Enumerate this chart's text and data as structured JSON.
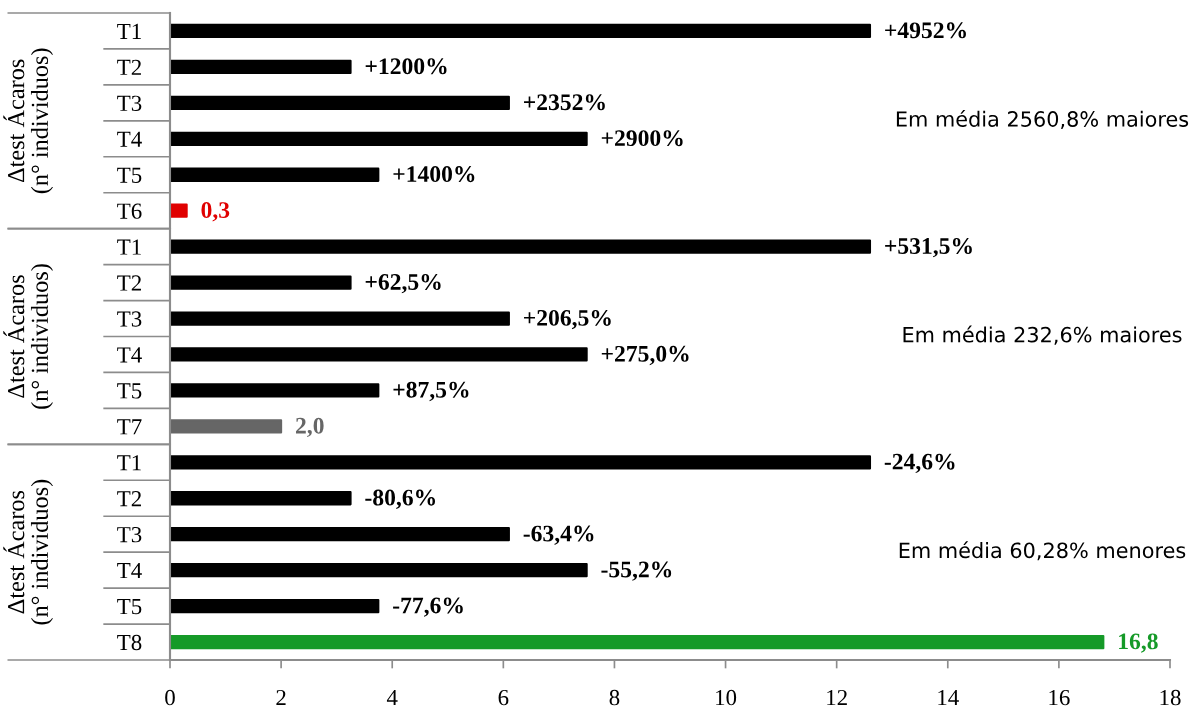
{
  "chart_data": [
    {
      "type": "bar",
      "orientation": "horizontal",
      "categories": [
        "T1",
        "T2",
        "T3",
        "T4",
        "T5",
        "T6"
      ],
      "values": [
        12.6,
        3.25,
        6.1,
        7.5,
        3.75,
        0.3
      ],
      "colors": [
        "#000000",
        "#000000",
        "#000000",
        "#000000",
        "#000000",
        "#e00000"
      ],
      "value_labels": [
        null,
        null,
        null,
        null,
        null,
        "0,3"
      ],
      "ylabel": "Δtest Ácaros\n(n° individuos)",
      "annotations": [
        {
          "text": "+4952%",
          "x": 12.6,
          "y": "T1"
        },
        {
          "text": "+1200%",
          "x": 3.25,
          "y": "T2"
        },
        {
          "text": "+2352%",
          "x": 6.1,
          "y": "T3"
        },
        {
          "text": "+2900%",
          "x": 7.5,
          "y": "T4"
        },
        {
          "text": "+1400%",
          "x": 3.75,
          "y": "T5"
        },
        "Em média 2560,8% maiores"
      ],
      "xlim": [
        0,
        18
      ],
      "xticks": [
        0,
        2,
        4,
        6,
        8,
        10,
        12,
        14,
        16,
        18
      ],
      "tick_labels": "y"
    },
    {
      "type": "bar",
      "orientation": "horizontal",
      "categories": [
        "T1",
        "T2",
        "T3",
        "T4",
        "T5",
        "T7"
      ],
      "values": [
        12.6,
        3.25,
        6.1,
        7.5,
        3.75,
        2.0
      ],
      "colors": [
        "#000000",
        "#000000",
        "#000000",
        "#000000",
        "#000000",
        "#666666"
      ],
      "value_labels": [
        null,
        null,
        null,
        null,
        null,
        "2,0"
      ],
      "ylabel": "Δtest Ácaros\n(n° individuos)",
      "annotations": [
        {
          "text": "+531,5%",
          "x": 12.6,
          "y": "T1"
        },
        {
          "text": "+62,5%",
          "x": 3.25,
          "y": "T2"
        },
        {
          "text": "+206,5%",
          "x": 6.1,
          "y": "T3"
        },
        {
          "text": "+275,0%",
          "x": 7.5,
          "y": "T4"
        },
        {
          "text": "+87,5%",
          "x": 3.75,
          "y": "T5"
        },
        "Em média 232,6% maiores"
      ],
      "xlim": [
        0,
        18
      ],
      "xticks": [
        0,
        2,
        4,
        6,
        8,
        10,
        12,
        14,
        16,
        18
      ],
      "tick_labels": "y"
    },
    {
      "type": "bar",
      "orientation": "horizontal",
      "categories": [
        "T1",
        "T2",
        "T3",
        "T4",
        "T5",
        "T8"
      ],
      "values": [
        12.6,
        3.25,
        6.1,
        7.5,
        3.75,
        16.8
      ],
      "colors": [
        "#000000",
        "#000000",
        "#000000",
        "#000000",
        "#000000",
        "#159a28"
      ],
      "value_labels": [
        null,
        null,
        null,
        null,
        null,
        "16,8"
      ],
      "ylabel": "Δtest Ácaros\n(n° individuos)",
      "annotations": [
        {
          "text": "-24,6%",
          "x": 12.6,
          "y": "T1"
        },
        {
          "text": "-80,6%",
          "x": 3.25,
          "y": "T2"
        },
        {
          "text": "-63,4%",
          "x": 6.1,
          "y": "T3"
        },
        {
          "text": "-55,2%",
          "x": 7.5,
          "y": "T4"
        },
        {
          "text": "-77,6%",
          "x": 3.75,
          "y": "T5"
        },
        "Em média 60,28% menores"
      ],
      "xlim": [
        0,
        18
      ],
      "xticks": [
        0,
        2,
        4,
        6,
        8,
        10,
        12,
        14,
        16,
        18
      ]
    }
  ]
}
